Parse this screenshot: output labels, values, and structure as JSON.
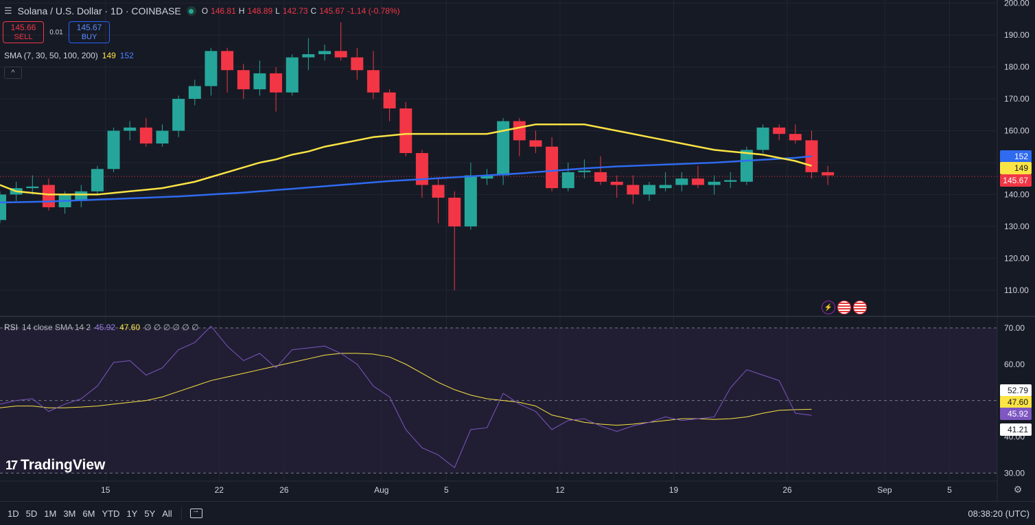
{
  "header": {
    "symbol_icon": "menu-icon",
    "title": "Solana / U.S. Dollar · 1D · COINBASE",
    "ohlc": {
      "o_label": "O",
      "o": "146.81",
      "h_label": "H",
      "h": "148.89",
      "l_label": "L",
      "l": "142.73",
      "c_label": "C",
      "c": "145.67",
      "change": "-1.14 (-0.78%)"
    }
  },
  "trade": {
    "sell_price": "145.66",
    "sell_label": "SELL",
    "spread": "0.01",
    "buy_price": "145.67",
    "buy_label": "BUY"
  },
  "sma_legend": {
    "name": "SMA (7, 30, 50, 100, 200)",
    "v1": "149",
    "v2": "152"
  },
  "rsi_legend": {
    "name": "RSI",
    "params": "14 close SMA 14 2",
    "rsi": "45.92",
    "sma": "47.60",
    "rest": "∅ ∅ ∅ ∅ ∅ ∅"
  },
  "colors": {
    "up": "#26a69a",
    "down": "#f23645",
    "sma_yellow": "#fbe444",
    "sma_blue": "#2f6bf0",
    "rsi": "#7e57c2",
    "rsi_band": "#211e33",
    "bg": "#161a25"
  },
  "chart_data": [
    {
      "type": "candlestick",
      "title": "Solana / U.S. Dollar · 1D · COINBASE",
      "x_ticks": [
        "15",
        "22",
        "26",
        "Aug",
        "5",
        "12",
        "19",
        "26",
        "Sep",
        "5"
      ],
      "y_ticks": [
        "110.00",
        "120.00",
        "130.00",
        "140.00",
        "150.00",
        "160.00",
        "170.00",
        "180.00",
        "190.00",
        "200.00"
      ],
      "ylim": [
        102,
        201
      ],
      "grid": true,
      "candles": [
        {
          "o": 132,
          "h": 141,
          "l": 131,
          "c": 140
        },
        {
          "o": 140,
          "h": 144,
          "l": 138,
          "c": 142
        },
        {
          "o": 142,
          "h": 146,
          "l": 140,
          "c": 142.5
        },
        {
          "o": 143,
          "h": 145,
          "l": 135,
          "c": 136
        },
        {
          "o": 136,
          "h": 141,
          "l": 134,
          "c": 140
        },
        {
          "o": 138,
          "h": 143,
          "l": 136,
          "c": 141
        },
        {
          "o": 141,
          "h": 149,
          "l": 140,
          "c": 148
        },
        {
          "o": 148,
          "h": 161,
          "l": 147,
          "c": 160
        },
        {
          "o": 160,
          "h": 163,
          "l": 157,
          "c": 161
        },
        {
          "o": 161,
          "h": 164,
          "l": 155,
          "c": 156
        },
        {
          "o": 156,
          "h": 162,
          "l": 155,
          "c": 160
        },
        {
          "o": 160,
          "h": 171,
          "l": 158,
          "c": 170
        },
        {
          "o": 170,
          "h": 176,
          "l": 168,
          "c": 174
        },
        {
          "o": 174,
          "h": 186,
          "l": 171,
          "c": 185
        },
        {
          "o": 185,
          "h": 186,
          "l": 172,
          "c": 179
        },
        {
          "o": 179,
          "h": 181,
          "l": 170,
          "c": 173
        },
        {
          "o": 173,
          "h": 182,
          "l": 171,
          "c": 178
        },
        {
          "o": 178,
          "h": 180,
          "l": 166,
          "c": 172
        },
        {
          "o": 172,
          "h": 184,
          "l": 171,
          "c": 183
        },
        {
          "o": 183,
          "h": 189,
          "l": 179,
          "c": 184
        },
        {
          "o": 184,
          "h": 187,
          "l": 182,
          "c": 185
        },
        {
          "o": 185,
          "h": 194,
          "l": 182,
          "c": 183
        },
        {
          "o": 183,
          "h": 186,
          "l": 176,
          "c": 179
        },
        {
          "o": 179,
          "h": 185,
          "l": 170,
          "c": 172
        },
        {
          "o": 172,
          "h": 173,
          "l": 163,
          "c": 167
        },
        {
          "o": 167,
          "h": 169,
          "l": 152,
          "c": 153
        },
        {
          "o": 153,
          "h": 154,
          "l": 139,
          "c": 143
        },
        {
          "o": 143,
          "h": 145,
          "l": 131,
          "c": 139
        },
        {
          "o": 139,
          "h": 141,
          "l": 110,
          "c": 130
        },
        {
          "o": 130,
          "h": 150,
          "l": 129,
          "c": 146
        },
        {
          "o": 145,
          "h": 148,
          "l": 143,
          "c": 146
        },
        {
          "o": 146,
          "h": 164,
          "l": 143,
          "c": 163
        },
        {
          "o": 163,
          "h": 164,
          "l": 152,
          "c": 157
        },
        {
          "o": 157,
          "h": 160,
          "l": 153,
          "c": 155
        },
        {
          "o": 155,
          "h": 158,
          "l": 141,
          "c": 142
        },
        {
          "o": 142,
          "h": 150,
          "l": 141,
          "c": 147
        },
        {
          "o": 147,
          "h": 151,
          "l": 145,
          "c": 147.5
        },
        {
          "o": 147,
          "h": 152,
          "l": 143,
          "c": 144
        },
        {
          "o": 144,
          "h": 146,
          "l": 139,
          "c": 143
        },
        {
          "o": 143,
          "h": 146,
          "l": 137,
          "c": 140
        },
        {
          "o": 140,
          "h": 144,
          "l": 138,
          "c": 143
        },
        {
          "o": 142,
          "h": 147,
          "l": 141,
          "c": 143
        },
        {
          "o": 143,
          "h": 147,
          "l": 141,
          "c": 145
        },
        {
          "o": 145,
          "h": 149,
          "l": 142,
          "c": 143
        },
        {
          "o": 143,
          "h": 146,
          "l": 140,
          "c": 144
        },
        {
          "o": 144,
          "h": 147,
          "l": 142,
          "c": 144.5
        },
        {
          "o": 144,
          "h": 155,
          "l": 143,
          "c": 154
        },
        {
          "o": 154,
          "h": 162,
          "l": 153,
          "c": 161
        },
        {
          "o": 161,
          "h": 162,
          "l": 157,
          "c": 159
        },
        {
          "o": 159,
          "h": 162,
          "l": 156,
          "c": 157
        },
        {
          "o": 157,
          "h": 160,
          "l": 145,
          "c": 147
        },
        {
          "o": 147,
          "h": 149,
          "l": 143,
          "c": 146
        }
      ],
      "series": [
        {
          "values": [
            143,
            141,
            140.5,
            140,
            140,
            140,
            140,
            140.5,
            141,
            141.5,
            142,
            143,
            144,
            145.5,
            147,
            148.5,
            150,
            151,
            152.5,
            153.5,
            155,
            156,
            157,
            158,
            158.5,
            159,
            159,
            159,
            159,
            159,
            159,
            160,
            161,
            162,
            162,
            162,
            162,
            161,
            160,
            159,
            158,
            157,
            156,
            155,
            154,
            153.5,
            153,
            152.5,
            151.5,
            150.5,
            149
          ]
        },
        {
          "values": [
            137.5,
            137.6,
            137.7,
            137.8,
            138,
            138.2,
            138.4,
            138.6,
            138.8,
            139,
            139.2,
            139.4,
            139.7,
            140,
            140.3,
            140.6,
            141,
            141.4,
            141.8,
            142.2,
            142.6,
            143,
            143.4,
            143.8,
            144.2,
            144.5,
            144.8,
            145.1,
            145.4,
            145.7,
            146,
            146.3,
            146.6,
            147,
            147.4,
            147.8,
            148.2,
            148.5,
            148.8,
            149,
            149.2,
            149.4,
            149.6,
            149.8,
            150,
            150.3,
            150.6,
            150.9,
            151.2,
            151.5,
            152
          ]
        }
      ],
      "markers": [
        {
          "value": "152",
          "color": "#2f6bf0"
        },
        {
          "value": "149",
          "color": "#fbe444"
        },
        {
          "value": "145.67",
          "color": "#f23645"
        }
      ]
    },
    {
      "type": "line",
      "title": "RSI 14 close SMA 14 2",
      "y_ticks": [
        "30.00",
        "40.00",
        "50.00",
        "60.00",
        "70.00"
      ],
      "ylim": [
        28,
        73
      ],
      "bands": [
        30,
        50,
        70
      ],
      "series": [
        {
          "values": [
            49,
            50,
            50.5,
            47,
            49,
            50.5,
            54,
            60.5,
            61,
            57,
            59,
            64,
            66,
            70.5,
            65,
            61,
            63,
            59,
            64,
            64.5,
            65,
            63,
            60,
            54,
            51,
            42,
            37,
            35,
            31.5,
            42,
            42.5,
            52,
            49,
            47,
            42,
            44.5,
            45,
            43,
            41.5,
            43,
            44,
            45.5,
            44.5,
            45,
            45.5,
            53.5,
            58.5,
            57,
            55.5,
            46.5,
            45.92
          ]
        },
        {
          "values": [
            48,
            48.5,
            48.5,
            48,
            48,
            48.2,
            48.5,
            49,
            49.5,
            50,
            51,
            52.5,
            54,
            55.5,
            56.5,
            57.5,
            58.5,
            59.5,
            60.5,
            61.5,
            62.5,
            63,
            63,
            62.8,
            62,
            60,
            57.5,
            55,
            53,
            51.5,
            50.5,
            50,
            49.5,
            48.5,
            46,
            45,
            44,
            43.5,
            43.2,
            43.5,
            44,
            44.5,
            45,
            45,
            44.8,
            45,
            45.5,
            46.5,
            47.3,
            47.5,
            47.6
          ]
        }
      ],
      "markers": [
        {
          "value": "52.79",
          "color": "#ffffff"
        },
        {
          "value": "47.60",
          "color": "#fbe444"
        },
        {
          "value": "45.92",
          "color": "#7e57c2"
        },
        {
          "value": "41.21",
          "color": "#ffffff"
        }
      ]
    }
  ],
  "toolbar": {
    "timeframes": [
      "1D",
      "5D",
      "1M",
      "3M",
      "6M",
      "YTD",
      "1Y",
      "5Y",
      "All"
    ],
    "range_icon": "date-range-icon",
    "clock": "08:38:20 (UTC)"
  },
  "logo": {
    "text": "TradingView"
  }
}
